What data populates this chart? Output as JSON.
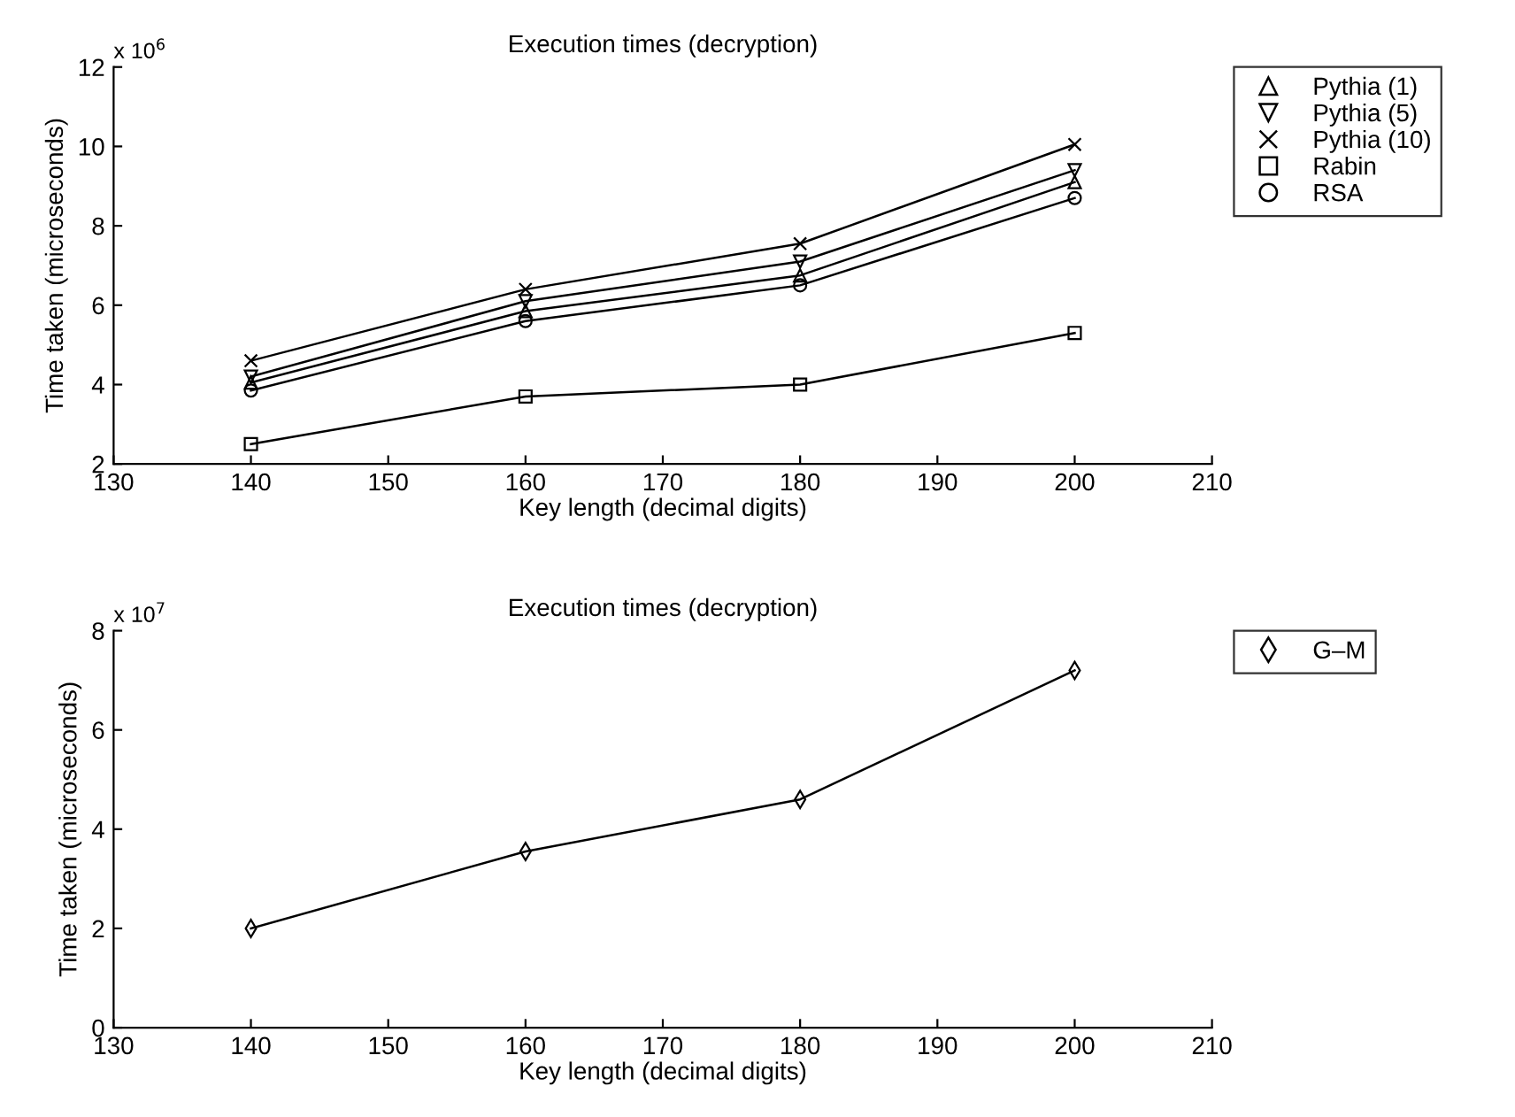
{
  "chart_data": [
    {
      "type": "line",
      "title": "Execution times (decryption)",
      "xlabel": "Key length (decimal digits)",
      "ylabel": "Time taken (microseconds)",
      "x": [
        140,
        160,
        180,
        200
      ],
      "xlim": [
        130,
        210
      ],
      "xticks": [
        130,
        140,
        150,
        160,
        170,
        180,
        190,
        200,
        210
      ],
      "ylim": [
        2,
        12
      ],
      "yticks": [
        2,
        4,
        6,
        8,
        10,
        12
      ],
      "annotations": [
        "x 10$^{6}$"
      ],
      "grid": false,
      "legend": "top right",
      "series": [
        {
          "name": "Pythia (1)",
          "color": "#000000",
          "marker": "triangle",
          "values": [
            4.05,
            5.85,
            6.75,
            9.1
          ]
        },
        {
          "name": "Pythia (5)",
          "color": "#000000",
          "marker": "triangle_down",
          "values": [
            4.2,
            6.1,
            7.1,
            9.4
          ]
        },
        {
          "name": "Pythia (10)",
          "color": "#000000",
          "marker": "cross",
          "values": [
            4.6,
            6.4,
            7.55,
            10.05
          ]
        },
        {
          "name": "Rabin",
          "color": "#000000",
          "marker": "square",
          "values": [
            2.5,
            3.7,
            4.0,
            5.3
          ]
        },
        {
          "name": "RSA",
          "color": "#000000",
          "marker": "circle",
          "values": [
            3.85,
            5.6,
            6.5,
            8.7
          ]
        }
      ]
    },
    {
      "type": "line",
      "title": "Execution times (decryption)",
      "xlabel": "Key length (decimal digits)",
      "ylabel": "Time taken (microseconds)",
      "x": [
        140,
        160,
        180,
        200
      ],
      "xlim": [
        130,
        210
      ],
      "xticks": [
        130,
        140,
        150,
        160,
        170,
        180,
        190,
        200,
        210
      ],
      "ylim": [
        0,
        8
      ],
      "yticks": [
        0,
        2,
        4,
        6,
        8
      ],
      "annotations": [
        "x 10$^{7}$"
      ],
      "grid": false,
      "legend": "top right",
      "series": [
        {
          "name": "G–M",
          "color": "#000000",
          "marker": "diamond",
          "values": [
            2.0,
            3.55,
            4.6,
            7.2
          ]
        }
      ]
    }
  ]
}
